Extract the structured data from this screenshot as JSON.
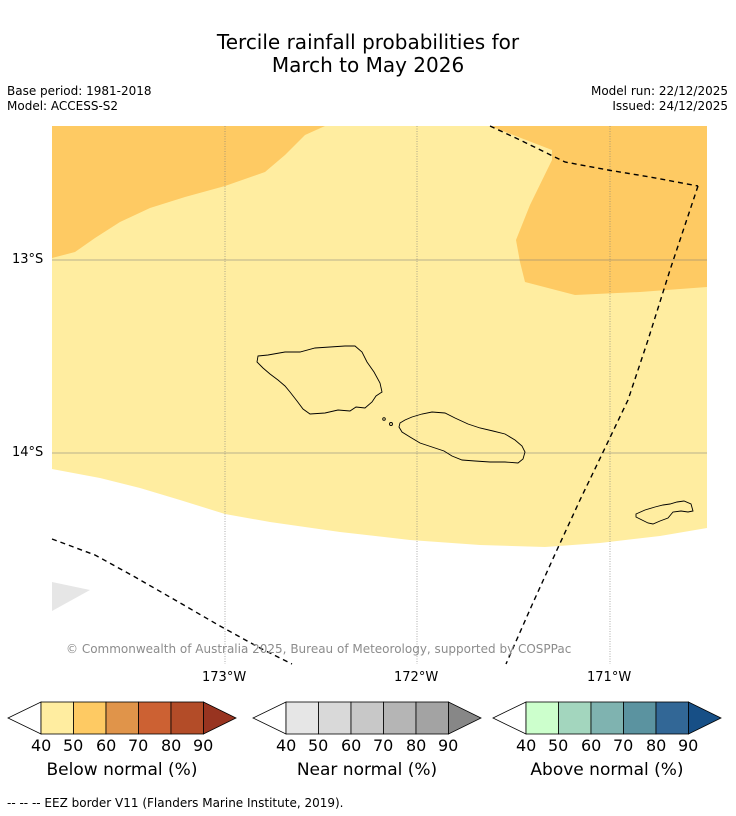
{
  "title_line1": "Tercile rainfall probabilities for",
  "title_line2": "March to May 2026",
  "meta_left": [
    "Base period: 1981-2018",
    "Model: ACCESS-S2"
  ],
  "meta_right": [
    "Model run: 22/12/2025",
    "Issued: 24/12/2025"
  ],
  "lat_labels": [
    "13°S",
    "14°S"
  ],
  "lon_labels": [
    "173°W",
    "172°W",
    "171°W"
  ],
  "copyright": "© Commonwealth of Australia 2025, Bureau of Meteorology, supported by COSPPac",
  "colorbars": [
    {
      "title": "Below normal (%)",
      "ticks": [
        "40",
        "50",
        "60",
        "70",
        "80",
        "90"
      ],
      "colors": [
        "#ffffff",
        "#ffeda0",
        "#feca63",
        "#e0944a",
        "#cc6133",
        "#b34c28",
        "#983420"
      ]
    },
    {
      "title": "Near normal (%)",
      "ticks": [
        "40",
        "50",
        "60",
        "70",
        "80",
        "90"
      ],
      "colors": [
        "#ffffff",
        "#e6e6e6",
        "#d9d9d9",
        "#c8c8c8",
        "#b5b5b5",
        "#a3a3a3",
        "#878787"
      ]
    },
    {
      "title": "Above normal (%)",
      "ticks": [
        "40",
        "50",
        "60",
        "70",
        "80",
        "90"
      ],
      "colors": [
        "#ffffff",
        "#ccffcc",
        "#a3d6be",
        "#7fb3b0",
        "#5b93a0",
        "#326796",
        "#174f86"
      ]
    }
  ],
  "footnote": "--  --  -- EEZ border V11 (Flanders Marine Institute, 2019).",
  "colors": {
    "below_40_50": "#ffeda0",
    "below_50_60": "#feca63",
    "near_40_50": "#e6e6e6"
  }
}
